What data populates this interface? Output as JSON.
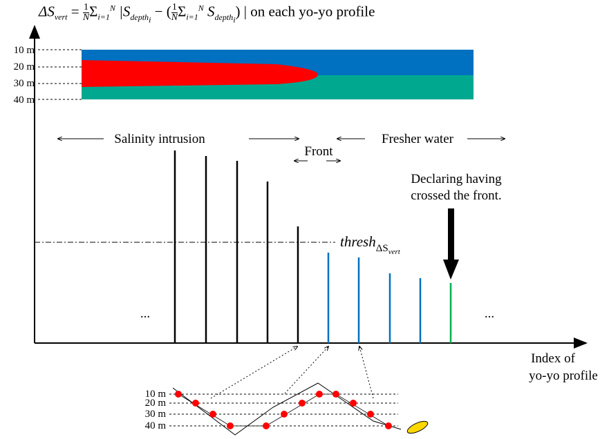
{
  "title": {
    "lhs": "ΔS",
    "lhs_sub": "vert",
    "eq": "=",
    "frac_num": "1",
    "frac_den": "N",
    "sigma": "Σ",
    "sum_sub": "i=1",
    "sum_sup": "N",
    "abs_open": "|S",
    "depth_sub": "depth",
    "i_sub": "i",
    "minus": "− (",
    "sigma2": "Σ",
    "s2": "S",
    "close": ") | on each yo-yo profile"
  },
  "depth_labels_top": [
    "10 m",
    "20 m",
    "30 m",
    "40 m"
  ],
  "depth_labels_bottom": [
    "10 m",
    "20 m",
    "30 m",
    "40 m"
  ],
  "regions": {
    "intrusion": "Salinity  intrusion",
    "front": "Front",
    "fresher": "Fresher water"
  },
  "annotation": {
    "line1": "Declaring having",
    "line2": "crossed the front."
  },
  "threshold": {
    "label": "thresh",
    "sub": "ΔS",
    "subsub": "vert"
  },
  "ellipsis_left": "...",
  "ellipsis_right": "...",
  "x_axis_label": {
    "line1": "Index of",
    "line2": "yo-yo profile"
  }
}
